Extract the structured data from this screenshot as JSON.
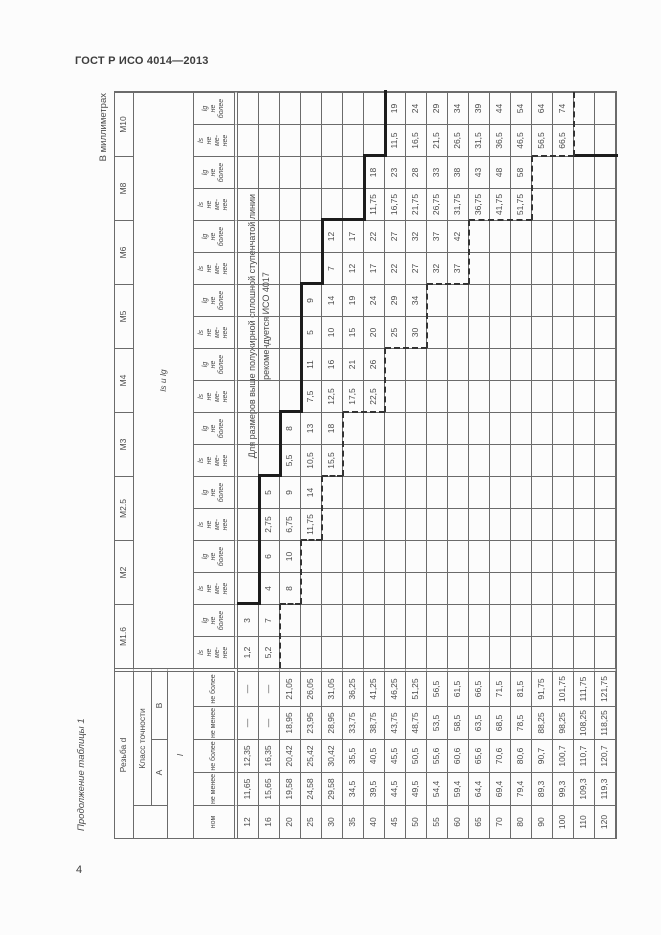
{
  "page": {
    "header": "ГОСТ Р ИСО 4014—2013",
    "page_number": "4",
    "table_caption": "Продолжение таблицы 1",
    "units_note": "В миллиметрах"
  },
  "note": {
    "line1": "Для размеров выше полужирной сплошной ступенчатой линии",
    "line2": "рекомендуется ИСО 4017"
  },
  "table": {
    "corner_label": "Резьба d",
    "class_label": "Класс точности",
    "class_a": "А",
    "class_b": "В",
    "length_label": "l",
    "nom_label": "ном",
    "min_label": "не менее",
    "max_label": "не более",
    "ls_lg_label": "ls и lg",
    "ls_header_lines": [
      "ls",
      "не",
      "ме-",
      "нее"
    ],
    "lg_header_lines": [
      "lg",
      "не",
      "более"
    ],
    "thread_sizes": [
      "M1.6",
      "M2",
      "M2.5",
      "M3",
      "M4",
      "M5",
      "M6",
      "M8",
      "M10"
    ],
    "rows": [
      {
        "nom": "12",
        "a_min": "11,65",
        "a_max": "12,35",
        "b_min": "—",
        "b_max": "—",
        "cells": [
          "1,2",
          "3",
          "",
          "",
          "",
          "",
          "",
          "",
          "",
          "",
          "",
          "",
          "",
          "",
          "",
          "",
          "",
          ""
        ]
      },
      {
        "nom": "16",
        "a_min": "15,65",
        "a_max": "16,35",
        "b_min": "—",
        "b_max": "—",
        "cells": [
          "5,2",
          "7",
          "4",
          "6",
          "2,75",
          "5",
          "",
          "",
          "",
          "",
          "",
          "",
          "",
          "",
          "",
          "",
          "",
          ""
        ]
      },
      {
        "nom": "20",
        "a_min": "19,58",
        "a_max": "20,42",
        "b_min": "18,95",
        "b_max": "21,05",
        "cells": [
          "",
          "",
          "8",
          "10",
          "6,75",
          "9",
          "5,5",
          "8",
          "",
          "",
          "",
          "",
          "",
          "",
          "",
          "",
          "",
          ""
        ]
      },
      {
        "nom": "25",
        "a_min": "24,58",
        "a_max": "25,42",
        "b_min": "23,95",
        "b_max": "26,05",
        "cells": [
          "",
          "",
          "",
          "",
          "11,75",
          "14",
          "10,5",
          "13",
          "7,5",
          "11",
          "5",
          "9",
          "",
          "",
          "",
          "",
          "",
          ""
        ]
      },
      {
        "nom": "30",
        "a_min": "29,58",
        "a_max": "30,42",
        "b_min": "28,95",
        "b_max": "31,05",
        "cells": [
          "",
          "",
          "",
          "",
          "",
          "",
          "15,5",
          "18",
          "12,5",
          "16",
          "10",
          "14",
          "7",
          "12",
          "",
          "",
          "",
          ""
        ]
      },
      {
        "nom": "35",
        "a_min": "34,5",
        "a_max": "35,5",
        "b_min": "33,75",
        "b_max": "36,25",
        "cells": [
          "",
          "",
          "",
          "",
          "",
          "",
          "",
          "",
          "17,5",
          "21",
          "15",
          "19",
          "12",
          "17",
          "",
          "",
          "",
          ""
        ]
      },
      {
        "nom": "40",
        "a_min": "39,5",
        "a_max": "40,5",
        "b_min": "38,75",
        "b_max": "41,25",
        "cells": [
          "",
          "",
          "",
          "",
          "",
          "",
          "",
          "",
          "22,5",
          "26",
          "20",
          "24",
          "17",
          "22",
          "11,75",
          "18",
          "",
          ""
        ]
      },
      {
        "nom": "45",
        "a_min": "44,5",
        "a_max": "45,5",
        "b_min": "43,75",
        "b_max": "46,25",
        "cells": [
          "",
          "",
          "",
          "",
          "",
          "",
          "",
          "",
          "",
          "",
          "25",
          "29",
          "22",
          "27",
          "16,75",
          "23",
          "11,5",
          "19"
        ]
      },
      {
        "nom": "50",
        "a_min": "49,5",
        "a_max": "50,5",
        "b_min": "48,75",
        "b_max": "51,25",
        "cells": [
          "",
          "",
          "",
          "",
          "",
          "",
          "",
          "",
          "",
          "",
          "30",
          "34",
          "27",
          "32",
          "21,75",
          "28",
          "16,5",
          "24"
        ]
      },
      {
        "nom": "55",
        "a_min": "54,4",
        "a_max": "55,6",
        "b_min": "53,5",
        "b_max": "56,5",
        "cells": [
          "",
          "",
          "",
          "",
          "",
          "",
          "",
          "",
          "",
          "",
          "",
          "",
          "32",
          "37",
          "26,75",
          "33",
          "21,5",
          "29"
        ]
      },
      {
        "nom": "60",
        "a_min": "59,4",
        "a_max": "60,6",
        "b_min": "58,5",
        "b_max": "61,5",
        "cells": [
          "",
          "",
          "",
          "",
          "",
          "",
          "",
          "",
          "",
          "",
          "",
          "",
          "37",
          "42",
          "31,75",
          "38",
          "26,5",
          "34"
        ]
      },
      {
        "nom": "65",
        "a_min": "64,4",
        "a_max": "65,6",
        "b_min": "63,5",
        "b_max": "66,5",
        "cells": [
          "",
          "",
          "",
          "",
          "",
          "",
          "",
          "",
          "",
          "",
          "",
          "",
          "",
          "",
          "36,75",
          "43",
          "31,5",
          "39"
        ]
      },
      {
        "nom": "70",
        "a_min": "69,4",
        "a_max": "70,6",
        "b_min": "68,5",
        "b_max": "71,5",
        "cells": [
          "",
          "",
          "",
          "",
          "",
          "",
          "",
          "",
          "",
          "",
          "",
          "",
          "",
          "",
          "41,75",
          "48",
          "36,5",
          "44"
        ]
      },
      {
        "nom": "80",
        "a_min": "79,4",
        "a_max": "80,6",
        "b_min": "78,5",
        "b_max": "81,5",
        "cells": [
          "",
          "",
          "",
          "",
          "",
          "",
          "",
          "",
          "",
          "",
          "",
          "",
          "",
          "",
          "51,75",
          "58",
          "46,5",
          "54"
        ]
      },
      {
        "nom": "90",
        "a_min": "89,3",
        "a_max": "90,7",
        "b_min": "88,25",
        "b_max": "91,75",
        "cells": [
          "",
          "",
          "",
          "",
          "",
          "",
          "",
          "",
          "",
          "",
          "",
          "",
          "",
          "",
          "",
          "",
          "56,5",
          "64"
        ]
      },
      {
        "nom": "100",
        "a_min": "99,3",
        "a_max": "100,7",
        "b_min": "98,25",
        "b_max": "101,75",
        "cells": [
          "",
          "",
          "",
          "",
          "",
          "",
          "",
          "",
          "",
          "",
          "",
          "",
          "",
          "",
          "",
          "",
          "66,5",
          "74"
        ]
      },
      {
        "nom": "110",
        "a_min": "109,3",
        "a_max": "110,7",
        "b_min": "108,25",
        "b_max": "111,75",
        "cells": [
          "",
          "",
          "",
          "",
          "",
          "",
          "",
          "",
          "",
          "",
          "",
          "",
          "",
          "",
          "",
          "",
          "",
          ""
        ]
      },
      {
        "nom": "120",
        "a_min": "119,3",
        "a_max": "120,7",
        "b_min": "118,25",
        "b_max": "121,75",
        "cells": [
          "",
          "",
          "",
          "",
          "",
          "",
          "",
          "",
          "",
          "",
          "",
          "",
          "",
          "",
          "",
          "",
          "",
          ""
        ]
      }
    ],
    "stairs": {
      "bold": [
        [
          "v",
          2,
          0,
          1
        ],
        [
          "h",
          1,
          2,
          6
        ],
        [
          "v",
          6,
          1,
          2
        ],
        [
          "h",
          2,
          6,
          8
        ],
        [
          "v",
          8,
          2,
          3
        ],
        [
          "h",
          3,
          8,
          12
        ],
        [
          "v",
          12,
          3,
          4
        ],
        [
          "h",
          4,
          12,
          14
        ],
        [
          "v",
          14,
          4,
          6
        ],
        [
          "h",
          6,
          14,
          16
        ],
        [
          "v",
          16,
          6,
          7
        ],
        [
          "h",
          7,
          16,
          18
        ],
        [
          "v",
          16,
          16,
          18
        ]
      ],
      "dotted": [
        [
          "h",
          2,
          0,
          2
        ],
        [
          "v",
          2,
          2,
          3
        ],
        [
          "h",
          3,
          2,
          4
        ],
        [
          "v",
          4,
          3,
          4
        ],
        [
          "h",
          4,
          4,
          6
        ],
        [
          "v",
          6,
          4,
          5
        ],
        [
          "h",
          5,
          6,
          8
        ],
        [
          "v",
          8,
          5,
          7
        ],
        [
          "h",
          7,
          8,
          10
        ],
        [
          "v",
          10,
          7,
          9
        ],
        [
          "h",
          9,
          10,
          12
        ],
        [
          "v",
          12,
          9,
          11
        ],
        [
          "h",
          11,
          12,
          14
        ],
        [
          "v",
          14,
          11,
          14
        ],
        [
          "h",
          14,
          14,
          16
        ],
        [
          "v",
          16,
          14,
          16
        ],
        [
          "h",
          16,
          16,
          18
        ]
      ]
    }
  }
}
